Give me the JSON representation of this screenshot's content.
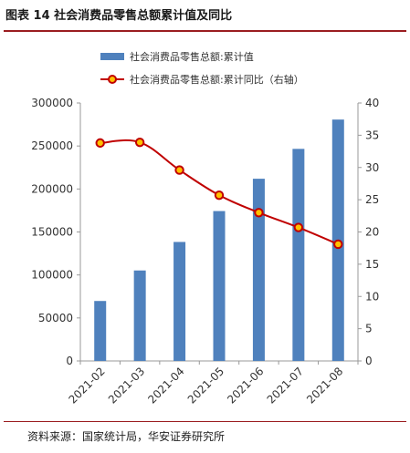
{
  "header": {
    "title": "图表 14  社会消费品零售总额累计值及同比"
  },
  "footer": {
    "source": "资料来源：国家统计局，华安证券研究所"
  },
  "colors": {
    "bar": "#4f81bd",
    "line": "#c00000",
    "marker_fill": "#ffc000",
    "accent_rule": "#9b1d20"
  },
  "chart_data": {
    "type": "bar",
    "categories": [
      "2021-02",
      "2021-03",
      "2021-04",
      "2021-05",
      "2021-06",
      "2021-07",
      "2021-08"
    ],
    "series": [
      {
        "name": "社会消费品零售总额:累计值",
        "type": "bar",
        "axis": "left",
        "values": [
          69737,
          105221,
          138384,
          174319,
          211904,
          246642,
          280731
        ]
      },
      {
        "name": "社会消费品零售总额:累计同比（右轴）",
        "type": "line",
        "axis": "right",
        "values": [
          33.8,
          33.9,
          29.6,
          25.7,
          23.0,
          20.7,
          18.1
        ]
      }
    ],
    "y_left": {
      "min": 0,
      "max": 300000,
      "ticks": [
        "0",
        "50000",
        "100000",
        "150000",
        "200000",
        "250000",
        "300000"
      ]
    },
    "y_right": {
      "min": 0,
      "max": 40,
      "ticks": [
        "0",
        "5",
        "10",
        "15",
        "20",
        "25",
        "30",
        "35",
        "40"
      ]
    },
    "grid": false,
    "legend": "top-center"
  }
}
